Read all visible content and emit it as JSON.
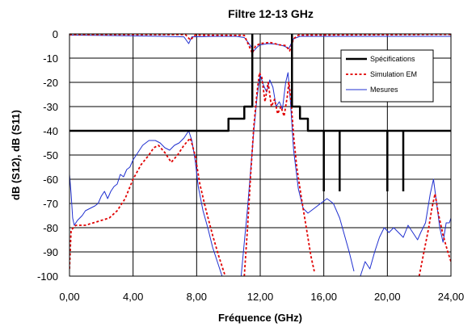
{
  "chart_data": {
    "type": "line",
    "title": "Filtre 12-13 GHz",
    "xlabel": "Fréquence (GHz)",
    "ylabel": "dB (S12), dB (S11)",
    "xlim": [
      0,
      24
    ],
    "ylim": [
      -100,
      0
    ],
    "x_ticks": [
      "0,00",
      "4,00",
      "8,00",
      "12,00",
      "16,00",
      "20,00",
      "24,00"
    ],
    "y_ticks": [
      "0",
      "-10",
      "-20",
      "-30",
      "-40",
      "-50",
      "-60",
      "-70",
      "-80",
      "-90",
      "-100"
    ],
    "grid": "major",
    "legend_position": "top-right",
    "series": [
      {
        "name": "Spécifications",
        "color": "#000000",
        "style": "solid-thick",
        "segments": [
          [
            [
              0,
              -40
            ],
            [
              10,
              -40
            ],
            [
              10,
              -35
            ],
            [
              11,
              -35
            ],
            [
              11,
              -30
            ],
            [
              11.5,
              -30
            ],
            [
              11.5,
              0
            ]
          ],
          [
            [
              14,
              0
            ],
            [
              14,
              -30
            ],
            [
              14.5,
              -30
            ],
            [
              14.5,
              -35
            ],
            [
              15,
              -35
            ],
            [
              15,
              -40
            ],
            [
              24,
              -40
            ]
          ],
          [
            [
              16,
              -40
            ],
            [
              16,
              -65
            ]
          ],
          [
            [
              17,
              -40
            ],
            [
              17,
              -65
            ]
          ],
          [
            [
              20,
              -40
            ],
            [
              20,
              -65
            ]
          ],
          [
            [
              21,
              -40
            ],
            [
              21,
              -65
            ]
          ]
        ]
      },
      {
        "name": "Simulation EM",
        "color": "#e00000",
        "style": "dotted",
        "segments": [
          [
            [
              0,
              -97
            ],
            [
              0.1,
              -81
            ],
            [
              0.4,
              -79
            ],
            [
              1.0,
              -79
            ],
            [
              1.5,
              -78
            ],
            [
              2.0,
              -77
            ],
            [
              2.5,
              -76
            ],
            [
              3.0,
              -73
            ],
            [
              3.5,
              -68
            ],
            [
              4.0,
              -60
            ],
            [
              4.5,
              -54
            ],
            [
              5.0,
              -50
            ],
            [
              5.3,
              -47
            ],
            [
              5.6,
              -46
            ],
            [
              6.0,
              -49
            ],
            [
              6.4,
              -53
            ],
            [
              6.8,
              -50
            ],
            [
              7.2,
              -46
            ],
            [
              7.6,
              -43
            ],
            [
              7.9,
              -50
            ],
            [
              8.2,
              -62
            ],
            [
              8.6,
              -73
            ],
            [
              9.0,
              -83
            ],
            [
              9.4,
              -92
            ],
            [
              9.8,
              -100
            ]
          ],
          [
            [
              11.0,
              -100
            ],
            [
              11.2,
              -80
            ],
            [
              11.4,
              -58
            ],
            [
              11.6,
              -38
            ],
            [
              11.8,
              -24
            ],
            [
              11.95,
              -16
            ],
            [
              12.1,
              -18
            ],
            [
              12.3,
              -28
            ],
            [
              12.5,
              -20
            ],
            [
              12.7,
              -30
            ],
            [
              12.9,
              -27
            ],
            [
              13.1,
              -33
            ],
            [
              13.3,
              -30
            ],
            [
              13.5,
              -34
            ],
            [
              13.7,
              -26
            ],
            [
              13.8,
              -20
            ],
            [
              13.95,
              -28
            ],
            [
              14.1,
              -42
            ],
            [
              14.3,
              -55
            ],
            [
              14.6,
              -68
            ],
            [
              14.9,
              -80
            ],
            [
              15.2,
              -92
            ],
            [
              15.4,
              -98
            ]
          ],
          [
            [
              22.0,
              -100
            ],
            [
              22.3,
              -90
            ],
            [
              22.6,
              -80
            ],
            [
              22.8,
              -72
            ],
            [
              23.0,
              -66
            ],
            [
              23.2,
              -74
            ],
            [
              23.5,
              -83
            ],
            [
              23.8,
              -90
            ],
            [
              24.0,
              -94
            ]
          ],
          [
            [
              0,
              -0.3
            ],
            [
              7.3,
              -0.3
            ],
            [
              7.6,
              -2.5
            ],
            [
              7.9,
              -0.5
            ],
            [
              11.0,
              -0.6
            ],
            [
              11.3,
              -5
            ],
            [
              11.5,
              -8
            ],
            [
              11.7,
              -5
            ],
            [
              12.0,
              -4
            ],
            [
              12.6,
              -3.5
            ],
            [
              13.2,
              -4.5
            ],
            [
              13.6,
              -4.8
            ],
            [
              13.85,
              -7
            ],
            [
              14.1,
              -2
            ],
            [
              14.4,
              -0.5
            ],
            [
              24.0,
              -0.2
            ]
          ]
        ]
      },
      {
        "name": "Mesures",
        "color": "#2030d0",
        "style": "solid",
        "segments": [
          [
            [
              0.0,
              -58
            ],
            [
              0.1,
              -66
            ],
            [
              0.2,
              -76
            ],
            [
              0.3,
              -79
            ],
            [
              0.5,
              -77
            ],
            [
              0.8,
              -75
            ],
            [
              1.0,
              -73
            ],
            [
              1.3,
              -72
            ],
            [
              1.6,
              -71
            ],
            [
              1.8,
              -70
            ],
            [
              2.0,
              -67
            ],
            [
              2.2,
              -65
            ],
            [
              2.4,
              -68
            ],
            [
              2.6,
              -65
            ],
            [
              2.8,
              -63
            ],
            [
              3.0,
              -62
            ],
            [
              3.2,
              -58
            ],
            [
              3.4,
              -59
            ],
            [
              3.6,
              -56
            ],
            [
              3.8,
              -55
            ],
            [
              4.0,
              -52
            ],
            [
              4.3,
              -49
            ],
            [
              4.6,
              -46
            ],
            [
              5.0,
              -44
            ],
            [
              5.4,
              -44
            ],
            [
              5.7,
              -45
            ],
            [
              6.0,
              -47
            ],
            [
              6.3,
              -48
            ],
            [
              6.6,
              -46
            ],
            [
              6.9,
              -45
            ],
            [
              7.2,
              -43
            ],
            [
              7.5,
              -40
            ],
            [
              7.7,
              -44
            ],
            [
              7.9,
              -52
            ],
            [
              8.1,
              -63
            ],
            [
              8.4,
              -73
            ],
            [
              8.7,
              -80
            ],
            [
              9.0,
              -88
            ],
            [
              9.3,
              -94
            ],
            [
              9.6,
              -100
            ]
          ],
          [
            [
              10.8,
              -100
            ],
            [
              11.0,
              -86
            ],
            [
              11.2,
              -72
            ],
            [
              11.4,
              -56
            ],
            [
              11.6,
              -40
            ],
            [
              11.8,
              -26
            ],
            [
              12.0,
              -17
            ],
            [
              12.2,
              -21
            ],
            [
              12.4,
              -24
            ],
            [
              12.6,
              -19
            ],
            [
              12.8,
              -22
            ],
            [
              13.0,
              -30
            ],
            [
              13.2,
              -28
            ],
            [
              13.4,
              -31
            ],
            [
              13.6,
              -20
            ],
            [
              13.75,
              -16
            ],
            [
              13.9,
              -28
            ],
            [
              14.1,
              -48
            ],
            [
              14.4,
              -64
            ],
            [
              14.7,
              -72
            ],
            [
              15.0,
              -74
            ],
            [
              15.4,
              -72
            ],
            [
              15.8,
              -70
            ],
            [
              16.2,
              -68
            ],
            [
              16.6,
              -70
            ],
            [
              17.0,
              -76
            ],
            [
              17.3,
              -83
            ],
            [
              17.6,
              -90
            ],
            [
              17.9,
              -98
            ]
          ],
          [
            [
              18.3,
              -100
            ],
            [
              18.6,
              -94
            ],
            [
              18.9,
              -97
            ],
            [
              19.2,
              -90
            ],
            [
              19.5,
              -84
            ],
            [
              19.8,
              -80
            ],
            [
              20.1,
              -82
            ],
            [
              20.4,
              -80
            ],
            [
              20.7,
              -82
            ],
            [
              21.0,
              -84
            ],
            [
              21.3,
              -79
            ],
            [
              21.6,
              -82
            ],
            [
              21.9,
              -85
            ],
            [
              22.1,
              -82
            ],
            [
              22.4,
              -78
            ],
            [
              22.7,
              -66
            ],
            [
              22.9,
              -60
            ],
            [
              23.1,
              -70
            ],
            [
              23.3,
              -80
            ],
            [
              23.5,
              -86
            ],
            [
              23.7,
              -78
            ],
            [
              23.9,
              -78
            ],
            [
              24.0,
              -76
            ]
          ],
          [
            [
              0,
              -0.5
            ],
            [
              3.0,
              -0.7
            ],
            [
              6.0,
              -1.0
            ],
            [
              7.2,
              -1.2
            ],
            [
              7.5,
              -4
            ],
            [
              7.7,
              -1.2
            ],
            [
              9.0,
              -1.0
            ],
            [
              10.5,
              -1.0
            ],
            [
              11.0,
              -1.5
            ],
            [
              11.3,
              -4
            ],
            [
              11.6,
              -7
            ],
            [
              11.8,
              -5.5
            ],
            [
              12.0,
              -4.5
            ],
            [
              12.5,
              -4
            ],
            [
              13.0,
              -4.2
            ],
            [
              13.5,
              -5
            ],
            [
              13.8,
              -6
            ],
            [
              14.1,
              -2
            ],
            [
              14.5,
              -1
            ],
            [
              18,
              -1
            ],
            [
              21,
              -1
            ],
            [
              24,
              -1
            ]
          ]
        ]
      }
    ]
  }
}
